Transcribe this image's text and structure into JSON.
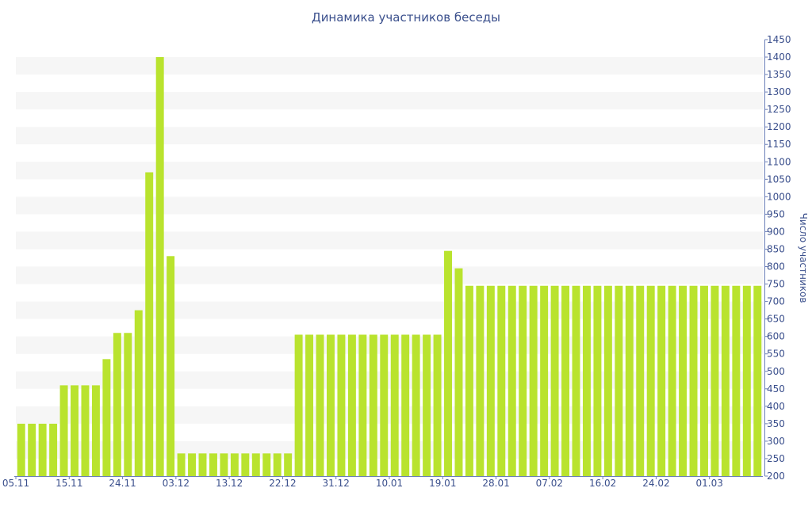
{
  "chart_data": {
    "type": "bar",
    "title": "Динамика участников беседы",
    "ylabel": "Число участников",
    "xlabel": "",
    "ylim": [
      200,
      1450
    ],
    "y_ticks": [
      200,
      250,
      300,
      350,
      400,
      450,
      500,
      550,
      600,
      650,
      700,
      750,
      800,
      850,
      900,
      950,
      1000,
      1050,
      1100,
      1150,
      1200,
      1250,
      1300,
      1350,
      1400,
      1450
    ],
    "y_axis_position": "right",
    "x_tick_labels": [
      {
        "label": "05.11",
        "index": 0
      },
      {
        "label": "15.11",
        "index": 5
      },
      {
        "label": "24.11",
        "index": 10
      },
      {
        "label": "03.12",
        "index": 15
      },
      {
        "label": "13.12",
        "index": 20
      },
      {
        "label": "22.12",
        "index": 25
      },
      {
        "label": "31.12",
        "index": 30
      },
      {
        "label": "10.01",
        "index": 35
      },
      {
        "label": "19.01",
        "index": 40
      },
      {
        "label": "28.01",
        "index": 45
      },
      {
        "label": "07.02",
        "index": 50
      },
      {
        "label": "16.02",
        "index": 55
      },
      {
        "label": "24.02",
        "index": 60
      },
      {
        "label": "01.03",
        "index": 65
      }
    ],
    "grid": "horizontal bands",
    "bar_color": "#b9e32e",
    "values": [
      350,
      350,
      350,
      350,
      460,
      460,
      460,
      460,
      535,
      610,
      610,
      675,
      1070,
      1400,
      830,
      265,
      265,
      265,
      265,
      265,
      265,
      265,
      265,
      265,
      265,
      265,
      605,
      605,
      605,
      605,
      605,
      605,
      605,
      605,
      605,
      605,
      605,
      605,
      605,
      605,
      845,
      795,
      745,
      745,
      745,
      745,
      745,
      745,
      745,
      745,
      745,
      745,
      745,
      745,
      745,
      745,
      745,
      745,
      745,
      745,
      745,
      745,
      745,
      745,
      745,
      745,
      745,
      745,
      745,
      745
    ]
  }
}
